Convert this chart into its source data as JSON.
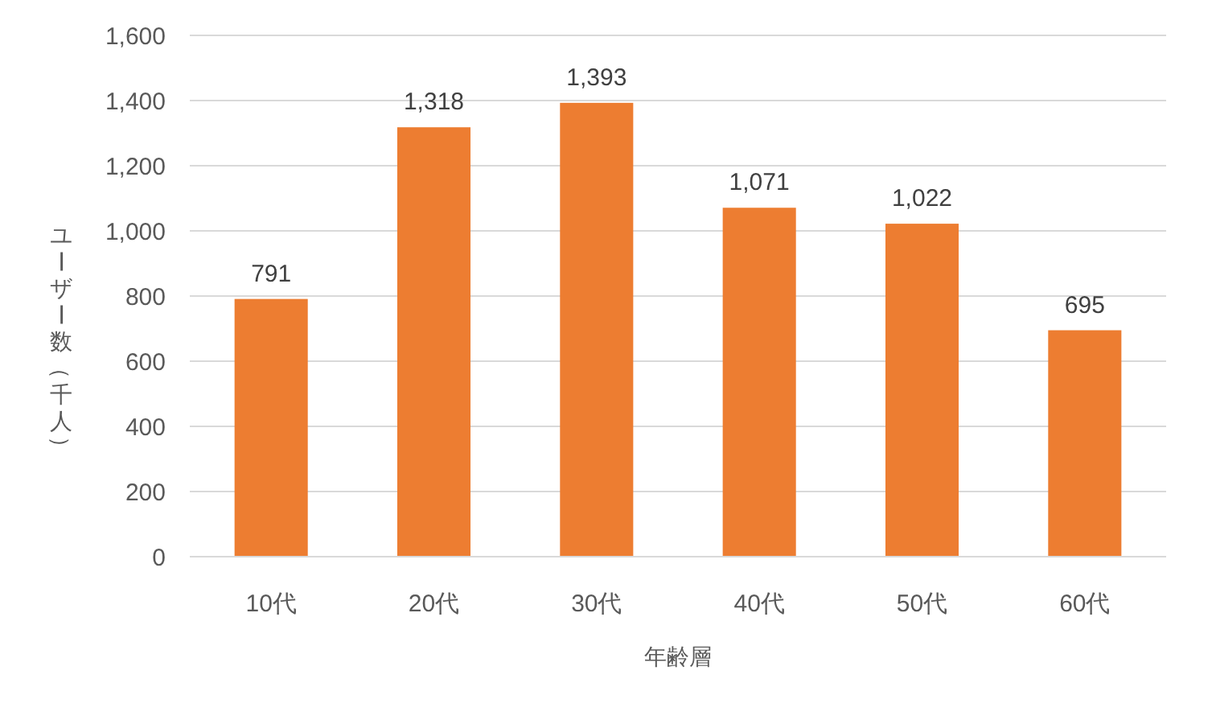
{
  "chart_data": {
    "type": "bar",
    "xlabel": "年齢層",
    "ylabel": "ユーザー数（千人）",
    "categories": [
      "10代",
      "20代",
      "30代",
      "40代",
      "50代",
      "60代"
    ],
    "values": [
      791,
      1318,
      1393,
      1071,
      1022,
      695
    ],
    "color": "#ed7d31",
    "ylim": [
      0,
      1600
    ],
    "yticks": [
      {
        "value": 0,
        "label": "0"
      },
      {
        "value": 200,
        "label": "200"
      },
      {
        "value": 400,
        "label": "400"
      },
      {
        "value": 600,
        "label": "600"
      },
      {
        "value": 800,
        "label": "800"
      },
      {
        "value": 1000,
        "label": "1,000"
      },
      {
        "value": 1200,
        "label": "1,200"
      },
      {
        "value": 1400,
        "label": "1,400"
      },
      {
        "value": 1600,
        "label": "1,600"
      }
    ],
    "value_labels": [
      "791",
      "1,318",
      "1,393",
      "1,071",
      "1,022",
      "695"
    ],
    "grid": "y"
  }
}
